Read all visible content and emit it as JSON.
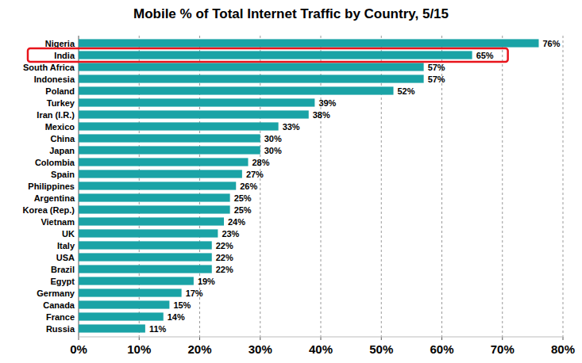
{
  "chart_data": {
    "type": "bar",
    "title": "Mobile % of Total Internet Traffic by Country, 5/15",
    "orientation": "horizontal",
    "categories": [
      "Nigeria",
      "India",
      "South Africa",
      "Indonesia",
      "Poland",
      "Turkey",
      "Iran (I.R.)",
      "Mexico",
      "China",
      "Japan",
      "Colombia",
      "Spain",
      "Philippines",
      "Argentina",
      "Korea (Rep.)",
      "Vietnam",
      "UK",
      "Italy",
      "USA",
      "Brazil",
      "Egypt",
      "Germany",
      "Canada",
      "France",
      "Russia"
    ],
    "values": [
      76,
      65,
      57,
      57,
      52,
      39,
      38,
      33,
      30,
      30,
      28,
      27,
      26,
      25,
      25,
      24,
      23,
      22,
      22,
      22,
      19,
      17,
      15,
      14,
      11
    ],
    "value_labels": [
      "76%",
      "65%",
      "57%",
      "57%",
      "52%",
      "39%",
      "38%",
      "33%",
      "30%",
      "30%",
      "28%",
      "27%",
      "26%",
      "25%",
      "25%",
      "24%",
      "23%",
      "22%",
      "22%",
      "22%",
      "19%",
      "17%",
      "15%",
      "14%",
      "11%"
    ],
    "color": "#1aa3a6",
    "xlim": [
      0,
      80
    ],
    "xticks": [
      {
        "value": 0,
        "label": "0%"
      },
      {
        "value": 10,
        "label": "10%"
      },
      {
        "value": 20,
        "label": "20%"
      },
      {
        "value": 30,
        "label": "30%"
      },
      {
        "value": 40,
        "label": "40%"
      },
      {
        "value": 50,
        "label": "50%"
      },
      {
        "value": 60,
        "label": "60%"
      },
      {
        "value": 70,
        "label": "70%"
      },
      {
        "value": 80,
        "label": "80%"
      }
    ],
    "grid": true,
    "data_labels": true
  }
}
